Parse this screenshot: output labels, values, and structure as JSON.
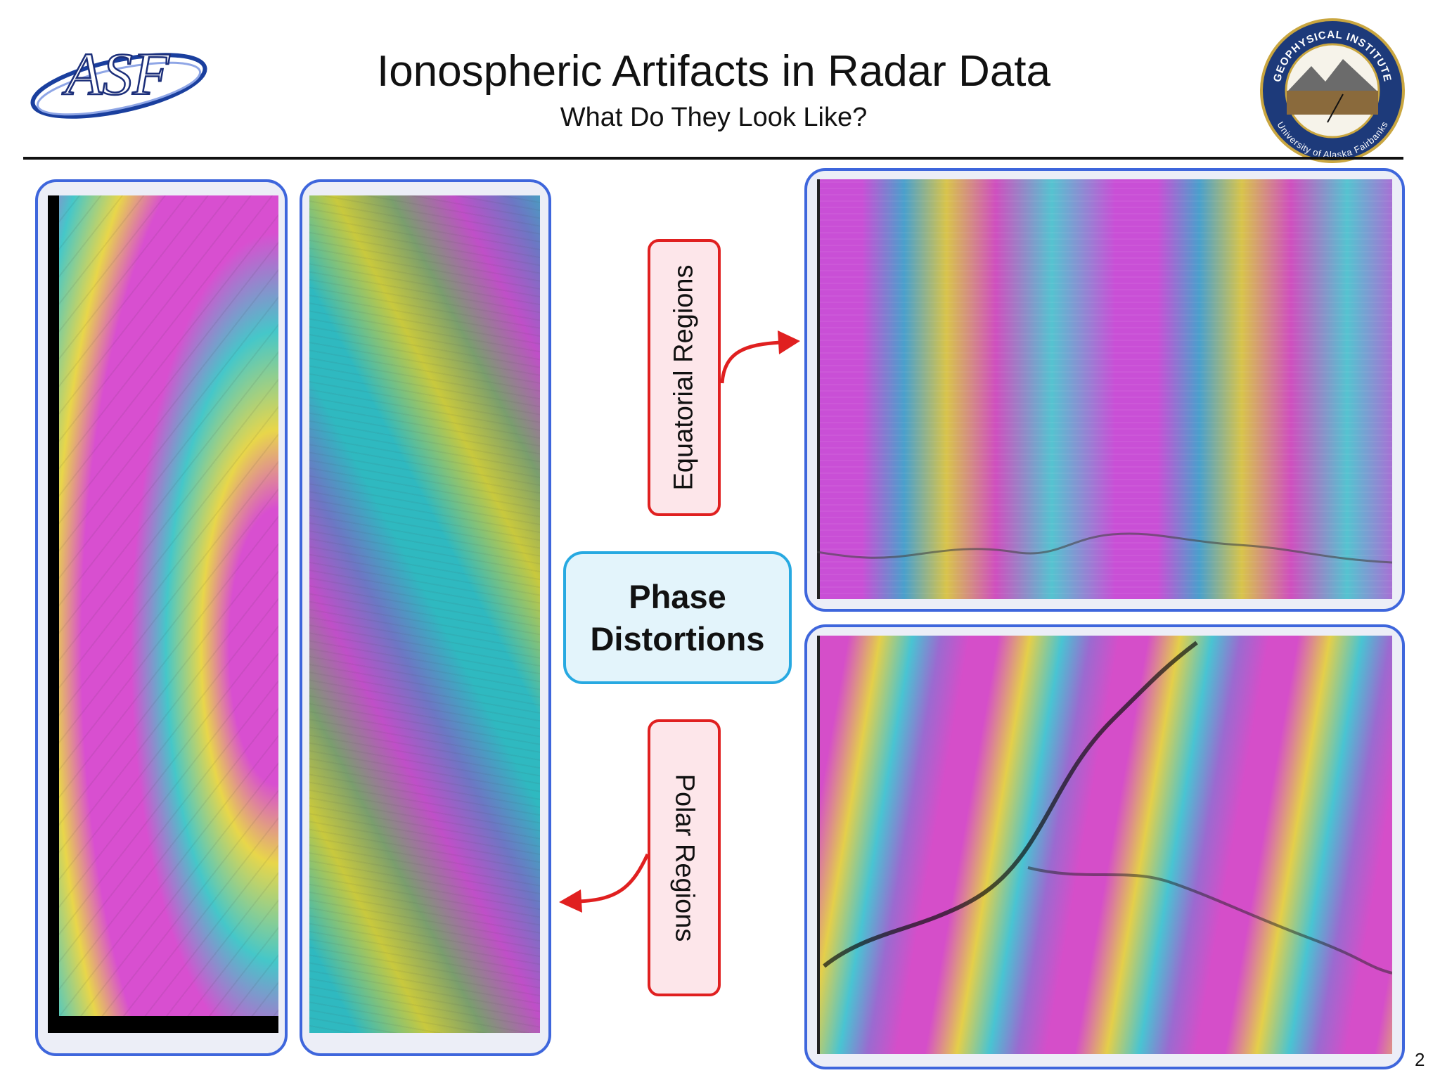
{
  "header": {
    "title": "Ionospheric Artifacts in Radar Data",
    "subtitle": "What Do They Look Like?"
  },
  "logos": {
    "asf": {
      "text": "ASF"
    },
    "institute": {
      "top": "GEOPHYSICAL INSTITUTE",
      "bottom": "University of Alaska Fairbanks"
    }
  },
  "labels": {
    "equatorial": "Equatorial Regions",
    "polar": "Polar Regions"
  },
  "center": {
    "lines": [
      "Phase",
      "Distortions"
    ]
  },
  "page_number": "2"
}
